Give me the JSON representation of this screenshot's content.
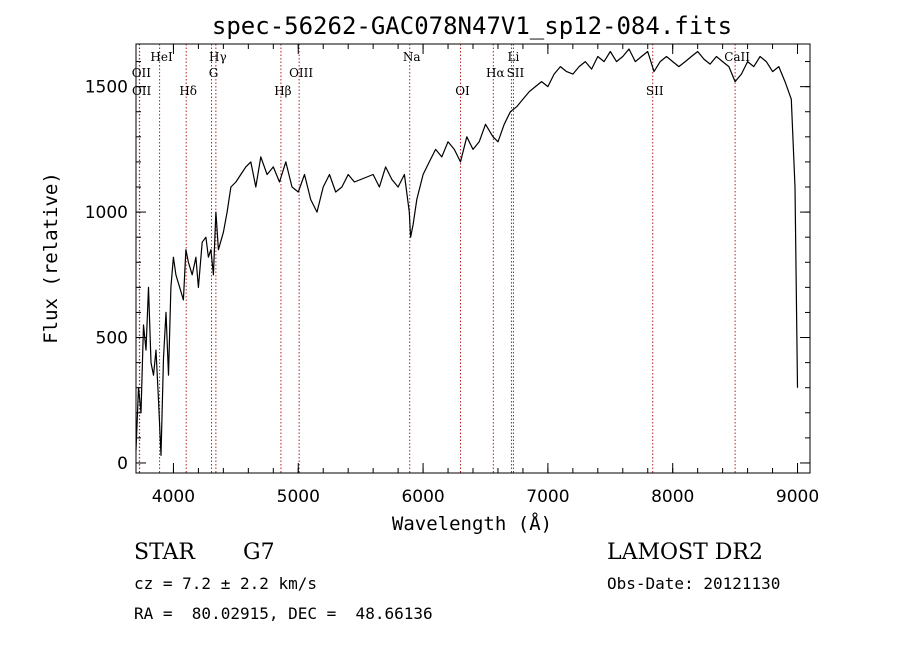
{
  "chart_data": {
    "type": "line",
    "title": "spec-56262-GAC078N47V1_sp12-084.fits",
    "xlabel": "Wavelength (Å)",
    "ylabel": "Flux (relative)",
    "xlim": [
      3700,
      9100
    ],
    "ylim": [
      -40,
      1670
    ],
    "x_ticks": [
      4000,
      5000,
      6000,
      7000,
      8000,
      9000
    ],
    "y_ticks": [
      0,
      500,
      1000,
      1500
    ],
    "line_color": "#000000",
    "marker_color": "#b22222",
    "series": [
      {
        "x": [
          3700,
          3720,
          3740,
          3760,
          3780,
          3800,
          3820,
          3840,
          3860,
          3880,
          3900,
          3920,
          3940,
          3960,
          3980,
          4000,
          4020,
          4050,
          4080,
          4100,
          4120,
          4150,
          4180,
          4200,
          4230,
          4260,
          4280,
          4300,
          4320,
          4340,
          4360,
          4400,
          4430,
          4460,
          4500,
          4540,
          4580,
          4620,
          4660,
          4700,
          4750,
          4800,
          4850,
          4900,
          4950,
          5000,
          5050,
          5100,
          5150,
          5200,
          5250,
          5300,
          5350,
          5400,
          5450,
          5500,
          5550,
          5600,
          5650,
          5700,
          5750,
          5800,
          5850,
          5890,
          5900,
          5920,
          5950,
          6000,
          6050,
          6100,
          6150,
          6200,
          6250,
          6300,
          6350,
          6400,
          6450,
          6500,
          6560,
          6600,
          6650,
          6700,
          6750,
          6800,
          6850,
          6900,
          6950,
          7000,
          7050,
          7100,
          7150,
          7200,
          7250,
          7300,
          7350,
          7400,
          7450,
          7500,
          7550,
          7600,
          7650,
          7700,
          7750,
          7800,
          7850,
          7900,
          7950,
          8000,
          8050,
          8100,
          8150,
          8200,
          8250,
          8300,
          8350,
          8400,
          8450,
          8500,
          8550,
          8600,
          8650,
          8700,
          8750,
          8800,
          8850,
          8900,
          8950,
          8980,
          9000
        ],
        "values": [
          50,
          300,
          200,
          550,
          450,
          700,
          400,
          350,
          450,
          250,
          30,
          420,
          600,
          350,
          700,
          820,
          750,
          700,
          650,
          850,
          800,
          750,
          820,
          700,
          880,
          900,
          820,
          850,
          750,
          1000,
          850,
          920,
          1000,
          1100,
          1120,
          1150,
          1180,
          1200,
          1100,
          1220,
          1150,
          1180,
          1120,
          1200,
          1100,
          1080,
          1150,
          1050,
          1000,
          1100,
          1150,
          1080,
          1100,
          1150,
          1120,
          1130,
          1140,
          1150,
          1100,
          1180,
          1130,
          1100,
          1150,
          1000,
          900,
          950,
          1050,
          1150,
          1200,
          1250,
          1220,
          1280,
          1250,
          1200,
          1300,
          1250,
          1280,
          1350,
          1300,
          1280,
          1350,
          1400,
          1420,
          1450,
          1480,
          1500,
          1520,
          1500,
          1550,
          1580,
          1560,
          1550,
          1580,
          1600,
          1570,
          1620,
          1600,
          1640,
          1600,
          1620,
          1650,
          1600,
          1620,
          1640,
          1560,
          1600,
          1620,
          1600,
          1580,
          1600,
          1620,
          1640,
          1610,
          1590,
          1620,
          1600,
          1580,
          1520,
          1550,
          1600,
          1580,
          1620,
          1600,
          1560,
          1580,
          1520,
          1450,
          1100,
          300
        ]
      }
    ],
    "line_markers": [
      {
        "name": "OII",
        "x": 3727,
        "label_row": 2
      },
      {
        "name": "OII",
        "x": 3729,
        "label_row": 3
      },
      {
        "name": "HeI",
        "x": 3889,
        "label_row": 1
      },
      {
        "name": "Hδ",
        "x": 4102,
        "label_row": 3
      },
      {
        "name": "Hγ",
        "x": 4340,
        "label_row": 1
      },
      {
        "name": "G",
        "x": 4305,
        "label_row": 2
      },
      {
        "name": "Hβ",
        "x": 4861,
        "label_row": 3
      },
      {
        "name": "OIII",
        "x": 5007,
        "label_row": 2
      },
      {
        "name": "Na",
        "x": 5893,
        "label_row": 1
      },
      {
        "name": "OI",
        "x": 6300,
        "label_row": 3
      },
      {
        "name": "Hα",
        "x": 6563,
        "label_row": 2
      },
      {
        "name": "SII",
        "x": 6724,
        "label_row": 2
      },
      {
        "name": "Li",
        "x": 6708,
        "label_row": 1
      },
      {
        "name": "SII",
        "x": 7840,
        "label_row": 3
      },
      {
        "name": "CaII",
        "x": 8500,
        "label_row": 1
      }
    ]
  },
  "info": {
    "object_type": "STAR",
    "subclass": "G7",
    "cz": "cz = 7.2 ± 2.2 km/s",
    "coords": "RA =  80.02915, DEC =  48.66136",
    "survey": "LAMOST DR2",
    "obs_date": "Obs-Date: 20121130"
  }
}
